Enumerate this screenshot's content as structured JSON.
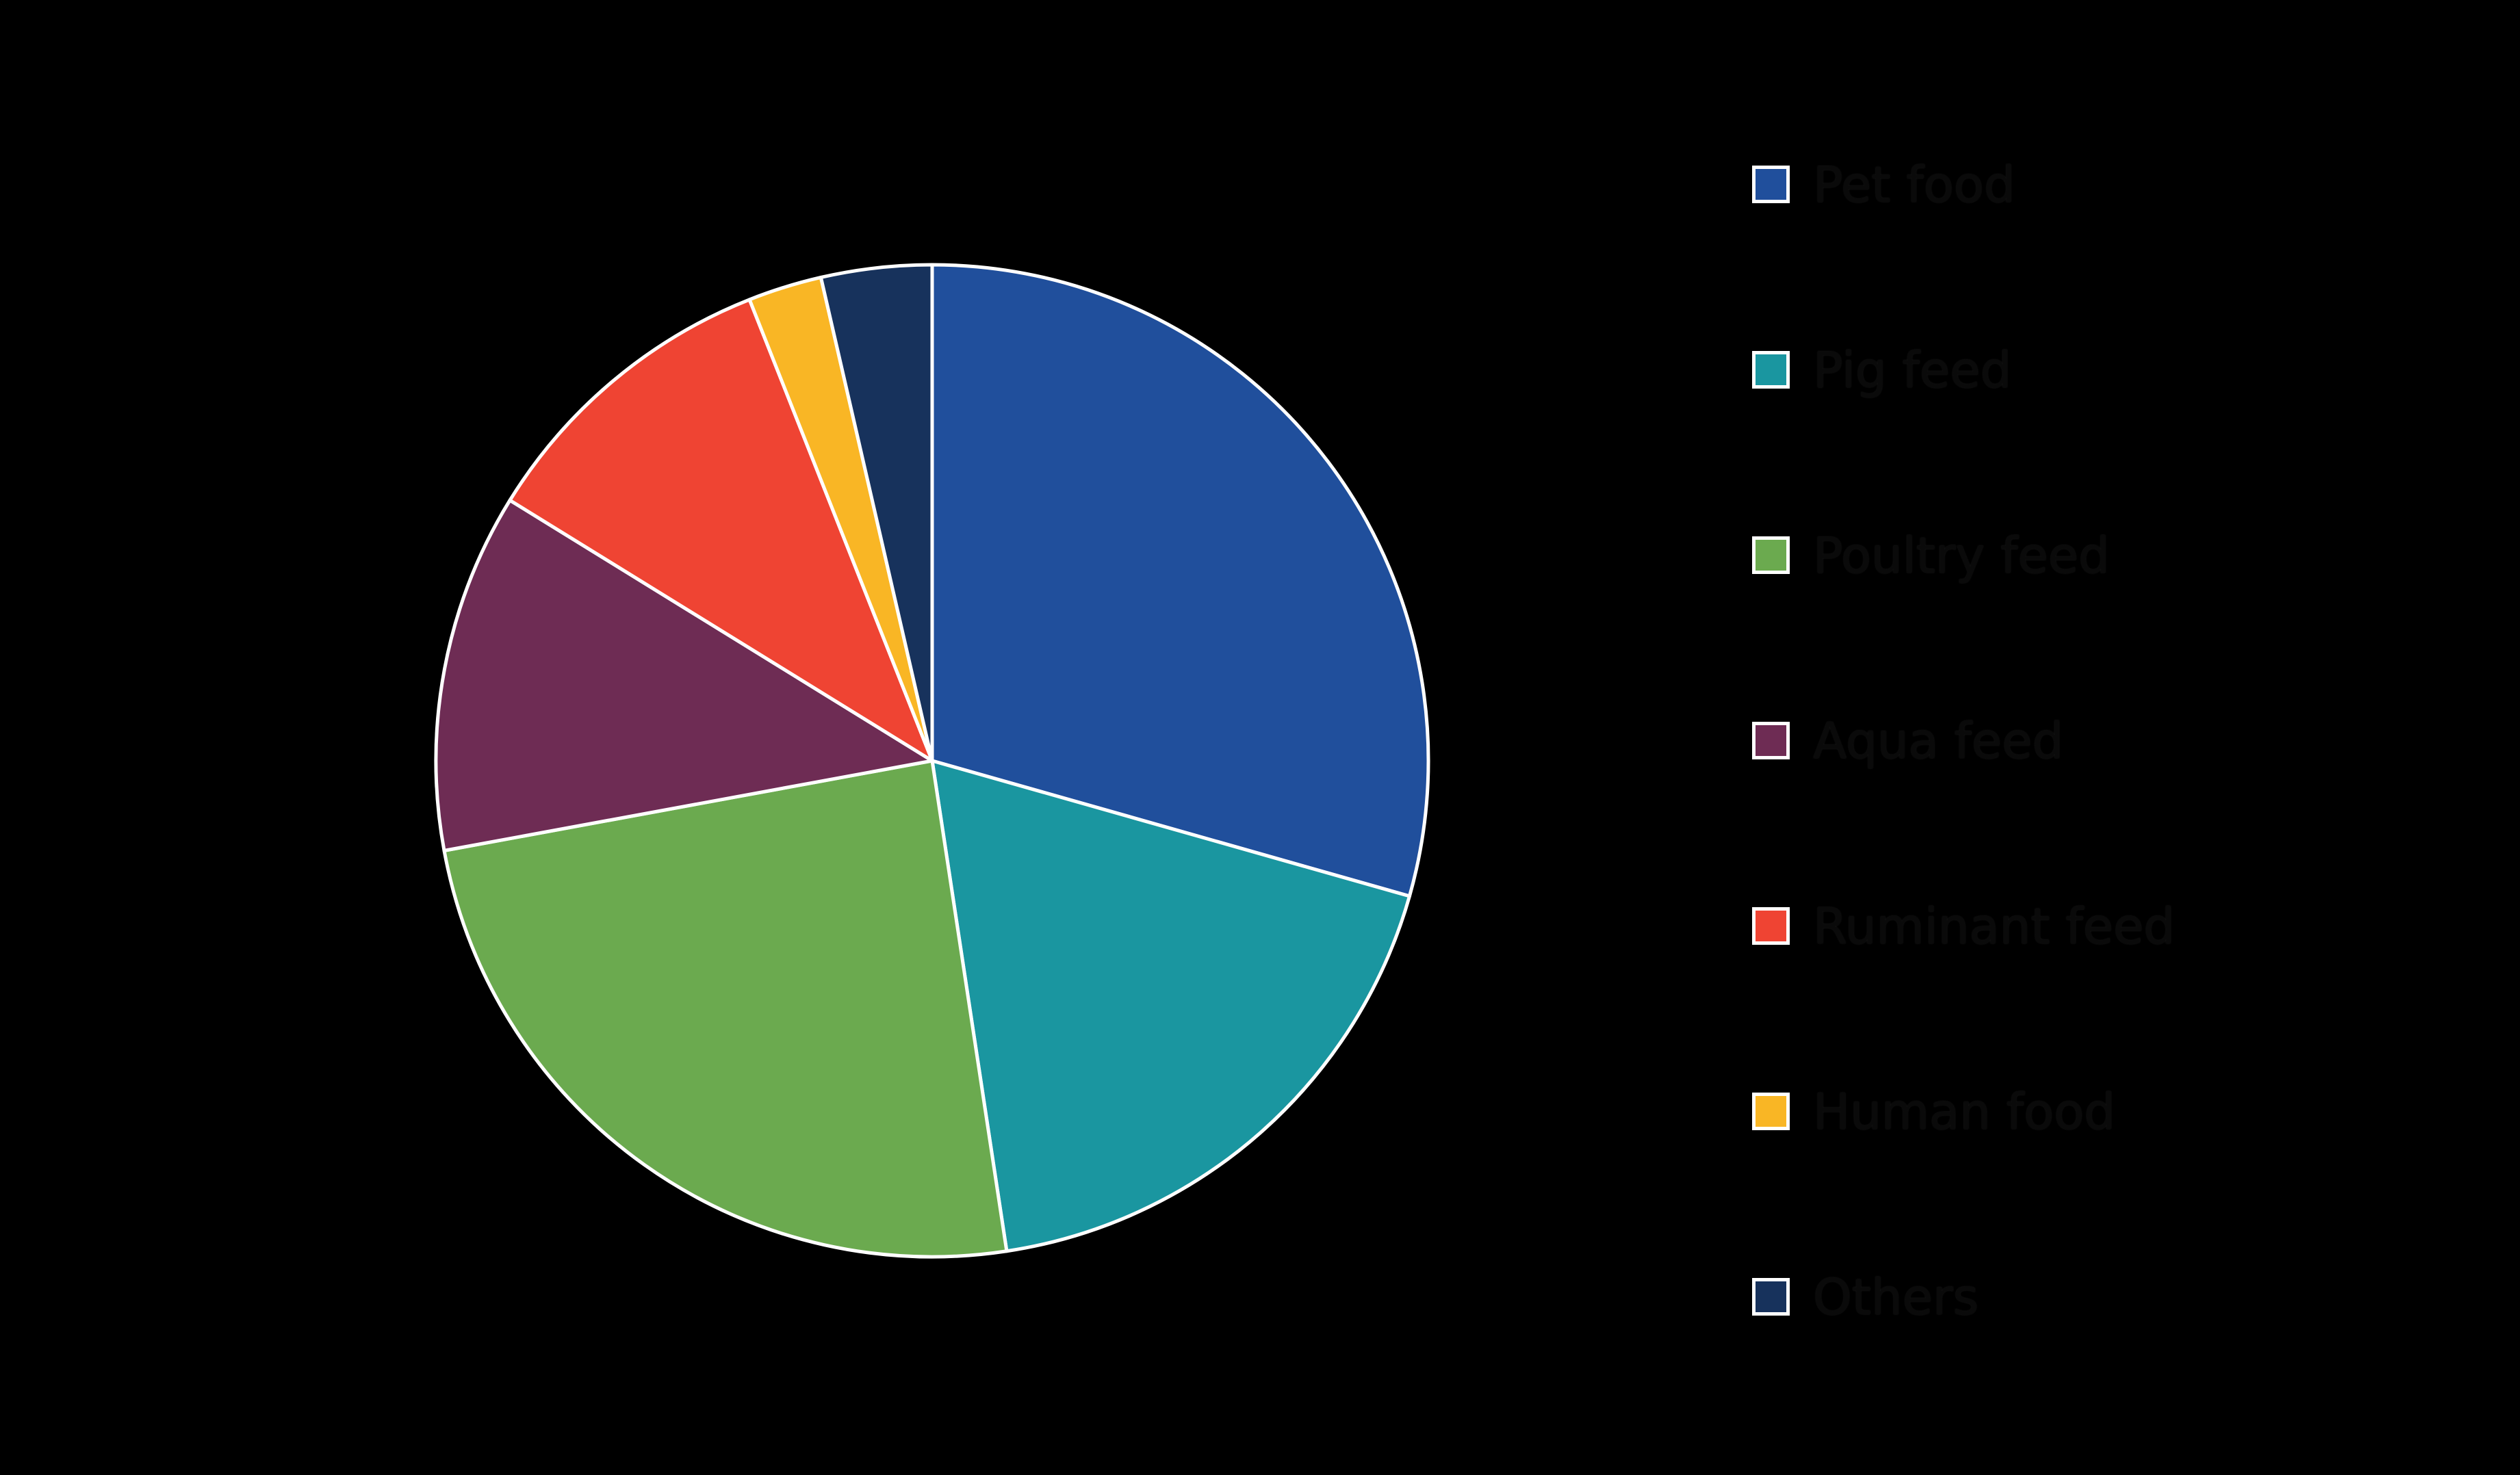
{
  "page": {
    "background_color": "#000000"
  },
  "chart_data": {
    "type": "pie",
    "title": "",
    "direction": "clockwise",
    "start_angle_deg_from_north": 0,
    "legend_position": "right",
    "wedge_edge_color": "#ffffff",
    "legend_text_color": "#0a0a0a",
    "slices": [
      {
        "label": "Pet food",
        "value_pct": 29.4,
        "color": "#204f9c"
      },
      {
        "label": "Pig feed",
        "value_pct": 18.2,
        "color": "#1a96a0"
      },
      {
        "label": "Poultry feed",
        "value_pct": 24.5,
        "color": "#6baa4f"
      },
      {
        "label": "Aqua feed",
        "value_pct": 11.7,
        "color": "#6e2c54"
      },
      {
        "label": "Ruminant feed",
        "value_pct": 10.2,
        "color": "#ef4433"
      },
      {
        "label": "Human food",
        "value_pct": 2.4,
        "color": "#f9b625"
      },
      {
        "label": "Others",
        "value_pct": 3.6,
        "color": "#17325c"
      }
    ]
  }
}
